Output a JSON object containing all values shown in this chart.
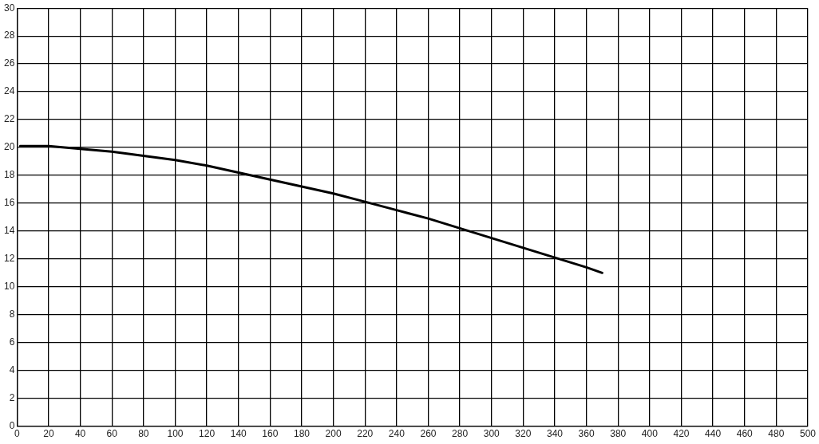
{
  "chart_data": {
    "type": "line",
    "x": [
      2,
      20,
      40,
      60,
      80,
      100,
      120,
      140,
      160,
      180,
      200,
      220,
      240,
      260,
      280,
      300,
      320,
      340,
      360,
      370
    ],
    "values": [
      20.1,
      20.1,
      19.9,
      19.7,
      19.4,
      19.1,
      18.7,
      18.2,
      17.7,
      17.2,
      16.7,
      16.1,
      15.5,
      14.9,
      14.2,
      13.5,
      12.8,
      12.1,
      11.4,
      11.0
    ],
    "color": "#000000",
    "xlim": [
      0,
      500
    ],
    "xticks": [
      0,
      20,
      40,
      60,
      80,
      100,
      120,
      140,
      160,
      180,
      200,
      220,
      240,
      260,
      280,
      300,
      320,
      340,
      360,
      380,
      400,
      420,
      440,
      460,
      480,
      500
    ],
    "ylim": [
      0,
      30
    ],
    "yticks": [
      0,
      2,
      4,
      6,
      8,
      10,
      12,
      14,
      16,
      18,
      20,
      22,
      24,
      26,
      28,
      30
    ],
    "grid": true,
    "legend": false,
    "marker": "none",
    "line_style": "solid"
  }
}
